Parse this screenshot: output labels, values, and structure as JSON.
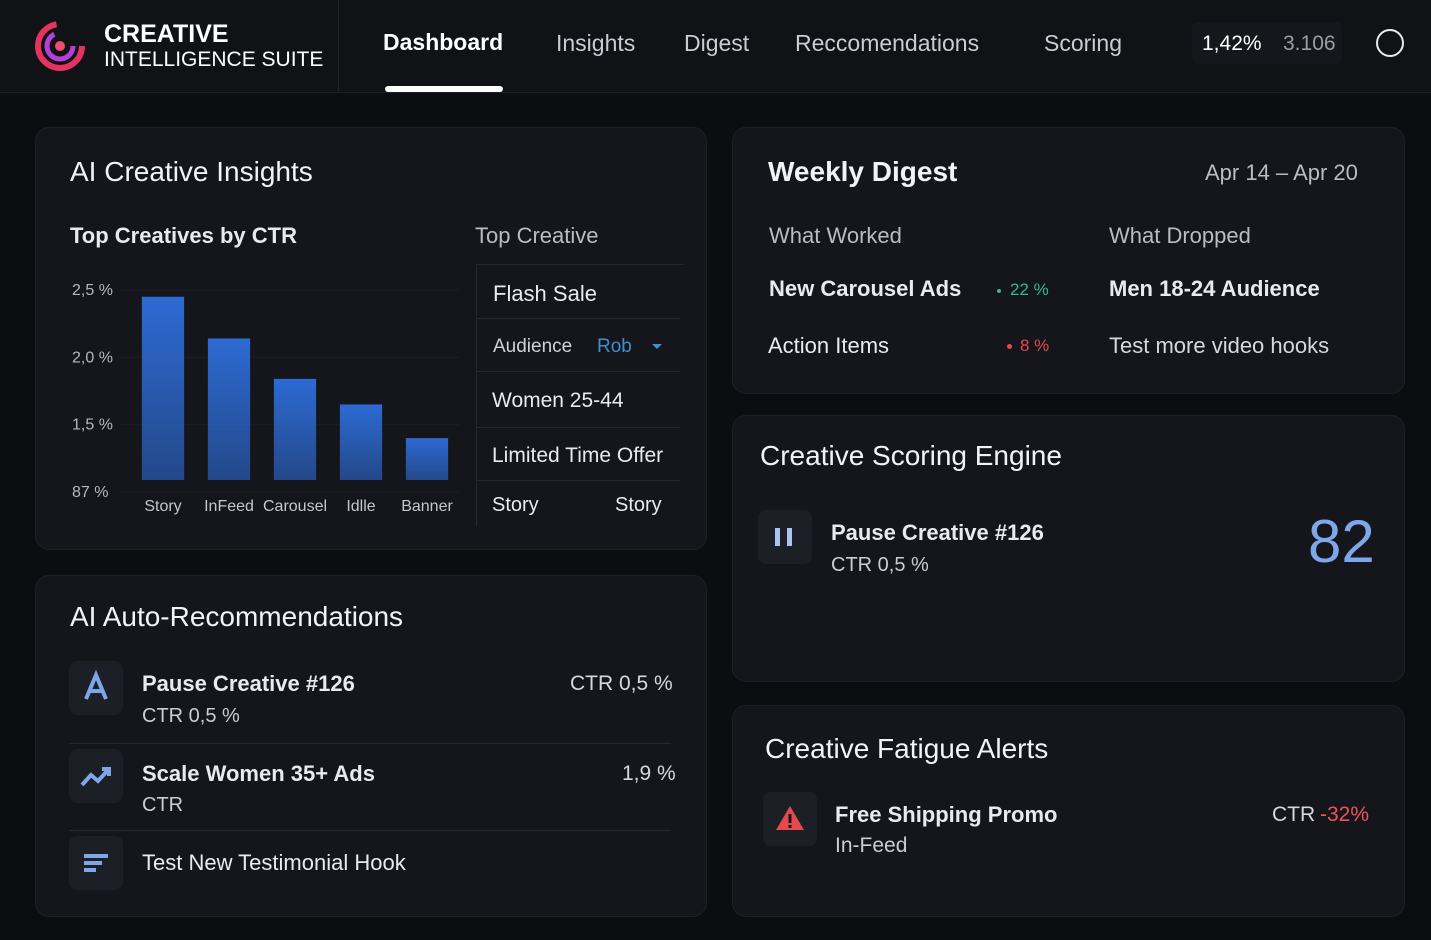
{
  "header": {
    "brand_line1": "CREATIVE",
    "brand_line2": "INTELLIGENCE SUITE",
    "nav": [
      "Dashboard",
      "Insights",
      "Digest",
      "Reccomendations",
      "Scoring"
    ],
    "stat1": "1,42%",
    "stat2": "3.106"
  },
  "insights": {
    "title": "AI Creative Insights",
    "chart": {
      "type": "bar",
      "title": "Top Creatives by CTR",
      "categories": [
        "Story",
        "InFeed",
        "Carousel",
        "Idlle",
        "Banner"
      ],
      "values": [
        2.45,
        2.14,
        1.84,
        1.65,
        1.4
      ],
      "ylim": [
        1.0,
        2.5
      ],
      "y_labels": [
        "2,5 %",
        "2,0 %",
        "1,5 %",
        "87 %"
      ],
      "color": "#2d6ad3"
    },
    "top_creative": {
      "title": "Top Creative",
      "name": "Flash Sale",
      "audience_label": "Audience",
      "audience_value": "Rob",
      "segment": "Women 25-44",
      "offer": "Limited Time Offer",
      "format_left": "Story",
      "format_right": "Story"
    }
  },
  "recommendations": {
    "title": "AI Auto-Recommendations",
    "items": [
      {
        "title": "Pause Creative #126",
        "subtitle": "CTR 0,5 %",
        "metric": "CTR 0,5 %"
      },
      {
        "title": "Scale Women 35+ Ads",
        "subtitle": "CTR",
        "metric": "1,9 %"
      },
      {
        "title": "Test New Testimonial Hook"
      }
    ]
  },
  "digest": {
    "title": "Weekly Digest",
    "date_range": "Apr 14 – Apr 20",
    "worked_label": "What Worked",
    "dropped_label": "What Dropped",
    "worked_item": "New Carousel Ads",
    "worked_change": "22 %",
    "dropped_item": "Men 18-24 Audience",
    "action_label": "Action Items",
    "action_change": "8 %",
    "action_item": "Test more video hooks"
  },
  "scoring": {
    "title": "Creative Scoring Engine",
    "item": "Pause Creative #126",
    "subtitle": "CTR 0,5 %",
    "score": "82"
  },
  "fatigue": {
    "title": "Creative Fatigue Alerts",
    "item": "Free Shipping Promo",
    "subtitle": "In-Feed",
    "metric_label": "CTR",
    "metric_value": "-32%"
  }
}
